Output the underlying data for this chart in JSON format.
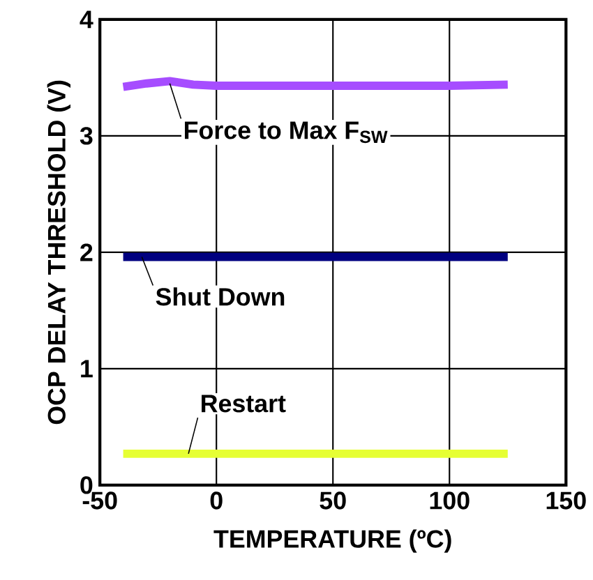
{
  "chart_data": {
    "type": "line",
    "xlabel": "TEMPERATURE (ºC)",
    "ylabel": "OCP DELAY THRESHOLD (V)",
    "xlim": [
      -50,
      150
    ],
    "ylim": [
      0,
      4
    ],
    "xticks": [
      -50,
      0,
      50,
      100,
      150
    ],
    "yticks": [
      0,
      1,
      2,
      3,
      4
    ],
    "grid": true,
    "marker": "none",
    "line_style": "solid",
    "series": [
      {
        "color": "#a64dff",
        "x": [
          -40,
          -30,
          -20,
          -10,
          0,
          50,
          100,
          125
        ],
        "values": [
          3.42,
          3.45,
          3.47,
          3.44,
          3.43,
          3.43,
          3.43,
          3.44
        ]
      },
      {
        "color": "#000080",
        "x": [
          -40,
          0,
          50,
          100,
          125
        ],
        "values": [
          1.96,
          1.96,
          1.96,
          1.96,
          1.96
        ]
      },
      {
        "color": "#e6ff33",
        "x": [
          -40,
          0,
          50,
          100,
          125
        ],
        "values": [
          0.27,
          0.27,
          0.27,
          0.27,
          0.27
        ]
      }
    ],
    "annotations": [
      {
        "text": "Force to Max F$_{SW}$",
        "x": -20,
        "y": 3.45
      },
      {
        "text": "Shut Down",
        "x": -32,
        "y": 1.96
      },
      {
        "text": "Restart",
        "x": -12,
        "y": 0.27
      }
    ]
  }
}
